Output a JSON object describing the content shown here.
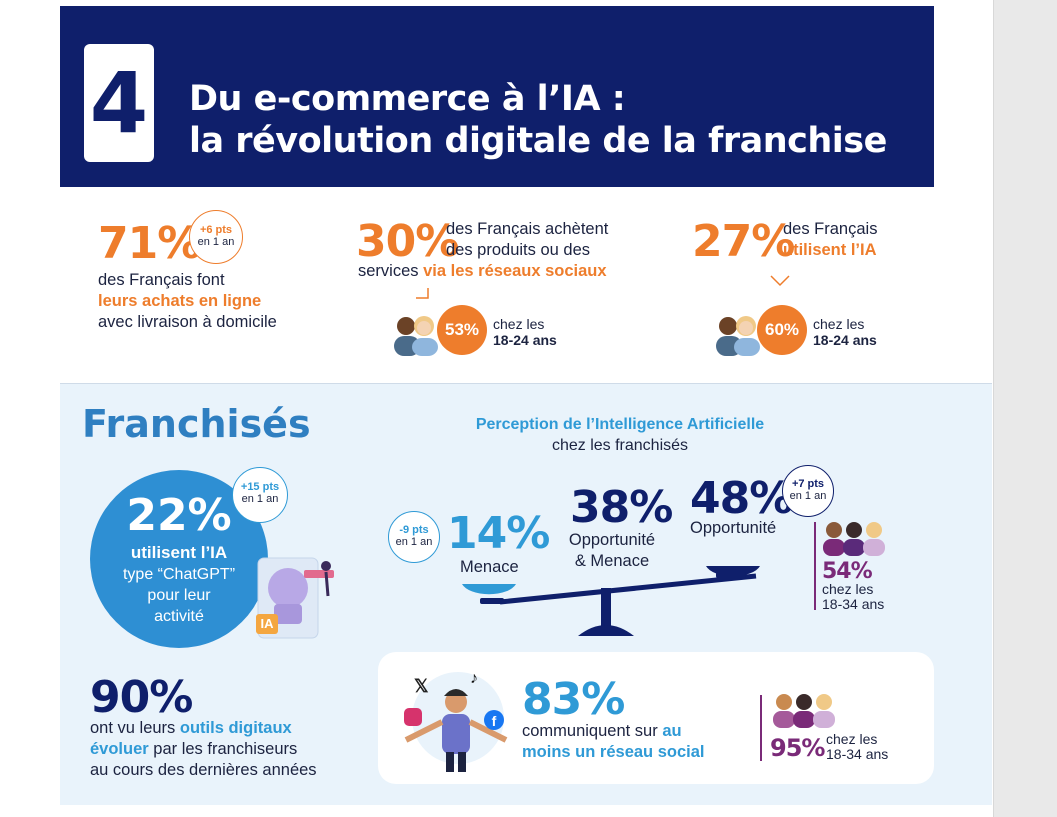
{
  "header": {
    "number": "4",
    "title_line1": "Du e-commerce à l’IA :",
    "title_line2": "la révolution digitale de la franchise"
  },
  "stats": {
    "s1": {
      "pct": "71%",
      "pill_top": "+6 pts",
      "pill_bottom": "en 1 an",
      "line1": "des Français font",
      "line2": "leurs achats en ligne",
      "line3": "avec livraison à domicile"
    },
    "s2": {
      "pct": "30%",
      "line1": "des Français achètent",
      "line2": "des produits ou des",
      "line3a": "services ",
      "line3b": "via les réseaux sociaux",
      "young_pct": "53%",
      "young_label1": "chez les",
      "young_label2": "18-24 ans"
    },
    "s3": {
      "pct": "27%",
      "line1": "des Français",
      "line2": "utilisent l’IA",
      "young_pct": "60%",
      "young_label1": "chez les",
      "young_label2": "18-24 ans"
    }
  },
  "franchises": {
    "title": "Franchisés",
    "ia": {
      "pct": "22%",
      "line1": "utilisent l’IA",
      "line2": "type “ChatGPT”",
      "line3": "pour leur",
      "line4": "activité",
      "pill_top": "+15 pts",
      "pill_bottom": "en 1 an",
      "ia_badge": "IA"
    },
    "outils": {
      "pct": "90%",
      "line1a": "ont vu leurs ",
      "line1b": "outils digitaux",
      "line2a": "évoluer",
      "line2b": " par les franchiseurs",
      "line3": "au cours des dernières années"
    }
  },
  "perception": {
    "title1": "Perception de l’Intelligence Artificielle",
    "title2": "chez les franchisés",
    "menace": {
      "pct": "14%",
      "label": "Menace",
      "pill_top": "-9 pts",
      "pill_bottom": "en 1 an"
    },
    "both": {
      "pct": "38%",
      "label1": "Opportunité",
      "label2": "& Menace"
    },
    "opportunite": {
      "pct": "48%",
      "label": "Opportunité",
      "pill_top": "+7 pts",
      "pill_bottom": "en 1 an"
    },
    "young": {
      "pct": "54%",
      "label1": "chez les",
      "label2": "18-34 ans"
    }
  },
  "social": {
    "pct": "83%",
    "line1a": "communiquent sur ",
    "line1b": "au",
    "line2": "moins un réseau social",
    "young_pct": "95%",
    "young_label1": "chez les",
    "young_label2": "18-34 ans",
    "icons": [
      "x-icon",
      "tiktok-icon",
      "instagram-icon",
      "facebook-icon"
    ]
  },
  "colors": {
    "navy": "#0f1f6b",
    "orange": "#ee7d2c",
    "blue": "#2f9ad6",
    "purple": "#7a2a78",
    "panel": "#e9f3fb"
  }
}
